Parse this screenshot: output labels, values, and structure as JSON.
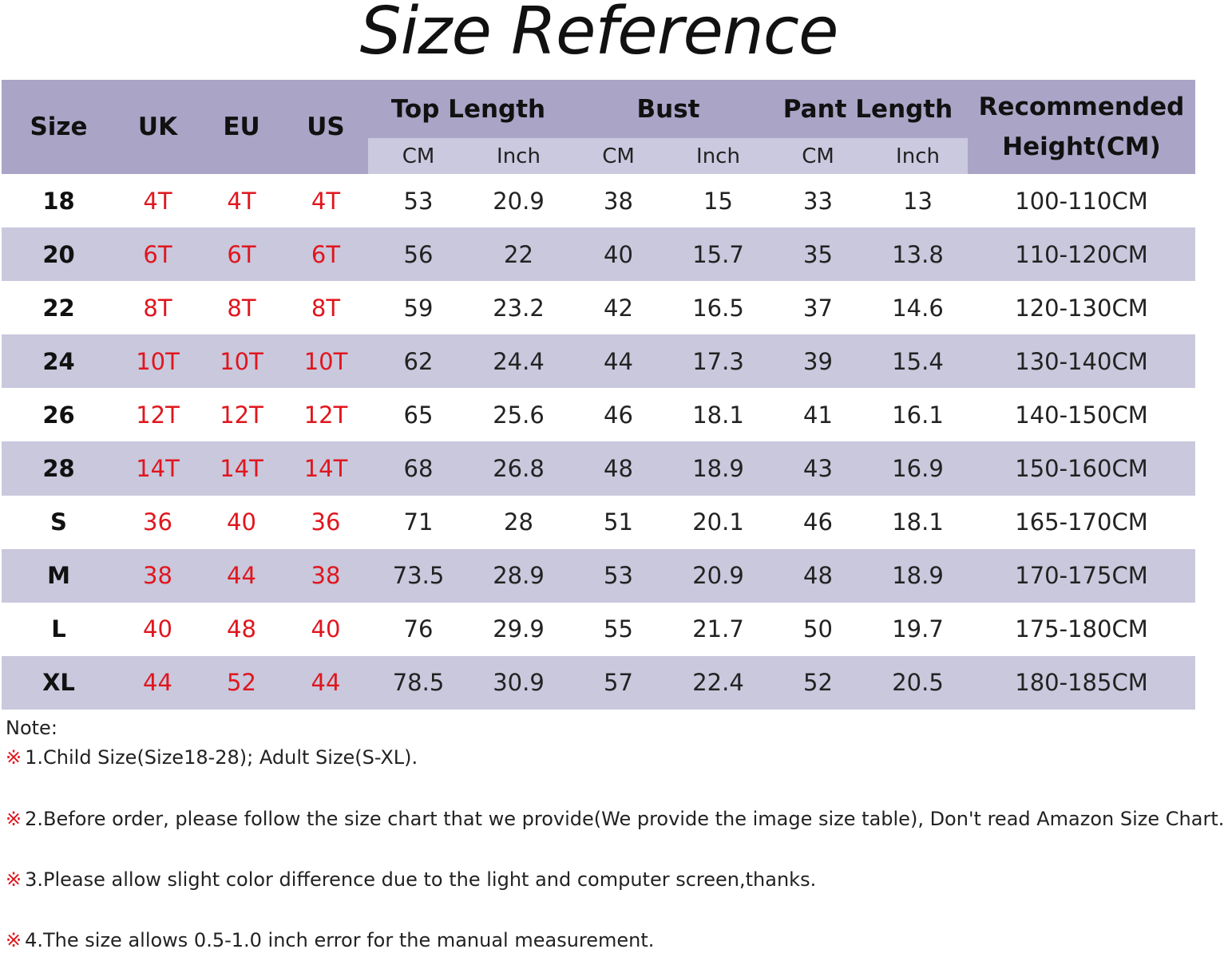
{
  "title": "Size Reference",
  "table": {
    "headers": {
      "size": "Size",
      "uk": "UK",
      "eu": "EU",
      "us": "US",
      "top_length": "Top Length",
      "bust": "Bust",
      "pant_length": "Pant Length",
      "height_line1": "Recommended",
      "height_line2": "Height(CM)"
    },
    "sub_headers": [
      "CM",
      "Inch",
      "CM",
      "Inch",
      "CM",
      "Inch"
    ],
    "rows": [
      [
        "18",
        "4T",
        "4T",
        "4T",
        "53",
        "20.9",
        "38",
        "15",
        "33",
        "13",
        "100-110CM"
      ],
      [
        "20",
        "6T",
        "6T",
        "6T",
        "56",
        "22",
        "40",
        "15.7",
        "35",
        "13.8",
        "110-120CM"
      ],
      [
        "22",
        "8T",
        "8T",
        "8T",
        "59",
        "23.2",
        "42",
        "16.5",
        "37",
        "14.6",
        "120-130CM"
      ],
      [
        "24",
        "10T",
        "10T",
        "10T",
        "62",
        "24.4",
        "44",
        "17.3",
        "39",
        "15.4",
        "130-140CM"
      ],
      [
        "26",
        "12T",
        "12T",
        "12T",
        "65",
        "25.6",
        "46",
        "18.1",
        "41",
        "16.1",
        "140-150CM"
      ],
      [
        "28",
        "14T",
        "14T",
        "14T",
        "68",
        "26.8",
        "48",
        "18.9",
        "43",
        "16.9",
        "150-160CM"
      ],
      [
        "S",
        "36",
        "40",
        "36",
        "71",
        "28",
        "51",
        "20.1",
        "46",
        "18.1",
        "165-170CM"
      ],
      [
        "M",
        "38",
        "44",
        "38",
        "73.5",
        "28.9",
        "53",
        "20.9",
        "48",
        "18.9",
        "170-175CM"
      ],
      [
        "L",
        "40",
        "48",
        "40",
        "76",
        "29.9",
        "55",
        "21.7",
        "50",
        "19.7",
        "175-180CM"
      ],
      [
        "XL",
        "44",
        "52",
        "44",
        "78.5",
        "30.9",
        "57",
        "22.4",
        "52",
        "20.5",
        "180-185CM"
      ]
    ]
  },
  "colors": {
    "header": "#aaa4c6",
    "subheader": "#cbc9df",
    "alt_row": "#c9c8dd",
    "accent_red": "#e0161e"
  },
  "notes": {
    "label": "Note:",
    "mark": "※",
    "items": [
      "1.Child Size(Size18-28); Adult Size(S-XL).",
      "2.Before order, please follow the size chart that we provide(We provide the image size table), Don't read Amazon Size Chart.",
      "3.Please allow slight color difference due to the light and computer screen,thanks.",
      "4.The size allows 0.5-1.0 inch error for the manual measurement."
    ]
  }
}
